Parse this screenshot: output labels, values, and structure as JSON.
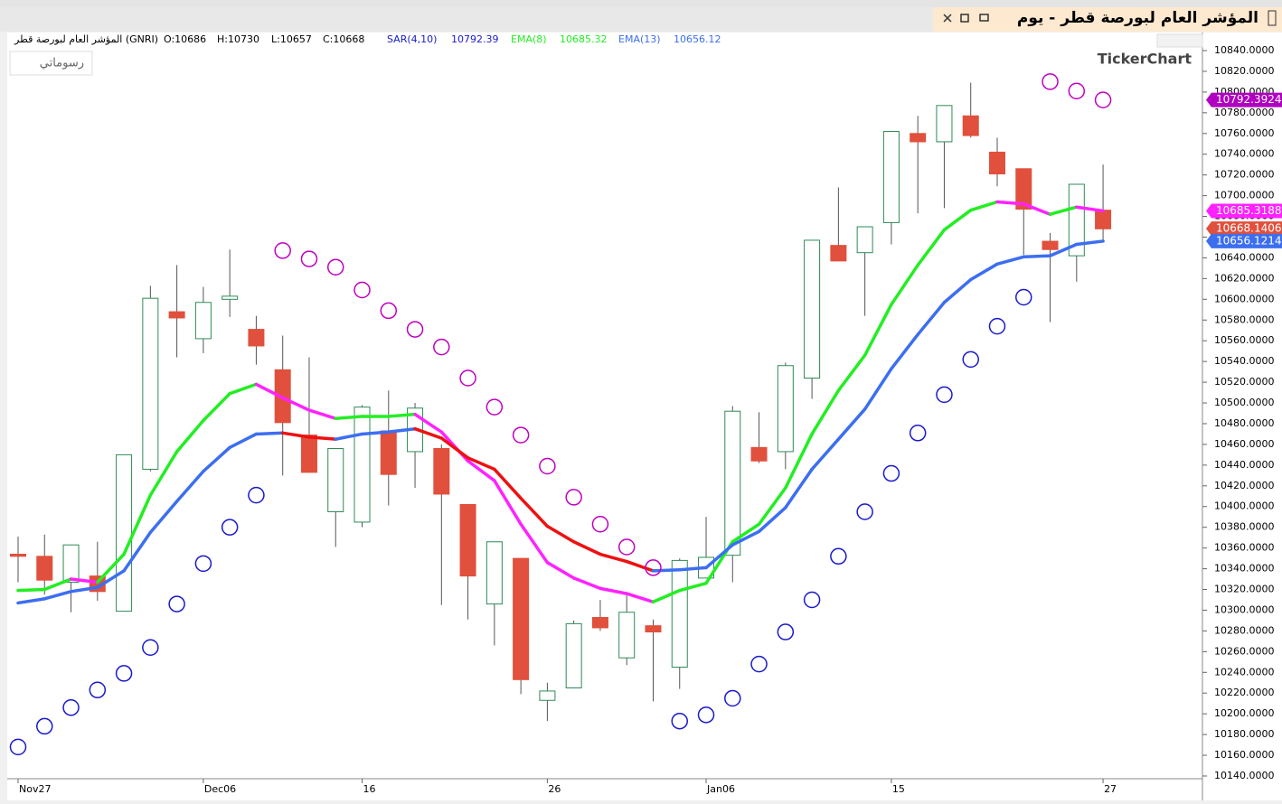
{
  "window": {
    "title": "المؤشر العام لبورصة قطر - يوم",
    "chart_button": "رسوماتي",
    "watermark": "TickerChart"
  },
  "chart_data": {
    "type": "candlestick",
    "instrument": "المؤشر العام لبورصة قطر (GNRI)",
    "ohlc_labels": [
      "O:10686",
      "H:10730",
      "L:10657",
      "C:10668"
    ],
    "categories": [
      "Nov27",
      null,
      null,
      null,
      null,
      null,
      null,
      "Dec06",
      null,
      null,
      null,
      null,
      null,
      "16",
      null,
      null,
      null,
      null,
      null,
      null,
      "26",
      null,
      null,
      null,
      null,
      null,
      "Jan06",
      null,
      null,
      null,
      null,
      null,
      null,
      "15",
      null,
      null,
      null,
      null,
      null,
      null,
      null,
      "27"
    ],
    "open": [
      10354,
      10352,
      10327,
      10333,
      10299,
      10436,
      10588,
      10562,
      10600,
      10571,
      10532,
      10469,
      10395,
      10385,
      10473,
      10453,
      10456,
      10402,
      10306,
      10350,
      10213,
      10225,
      10293,
      10254,
      10285,
      10245,
      10331,
      10353,
      10457,
      10453,
      10524,
      10652,
      10645,
      10674,
      10760,
      10752,
      10777,
      10742,
      10726,
      10656,
      10642,
      10686
    ],
    "high": [
      10371,
      10373,
      10363,
      10366,
      10450,
      10613,
      10633,
      10612,
      10648,
      10584,
      10565,
      10544,
      10456,
      10498,
      10512,
      10500,
      10460,
      10402,
      10366,
      10350,
      10230,
      10290,
      10310,
      10317,
      10291,
      10350,
      10390,
      10497,
      10491,
      10539,
      10657,
      10708,
      10670,
      10762,
      10777,
      10787,
      10809,
      10756,
      10726,
      10664,
      10711,
      10730
    ],
    "low": [
      10327,
      10315,
      10298,
      10309,
      10299,
      10434,
      10544,
      10548,
      10583,
      10537,
      10430,
      10433,
      10361,
      10380,
      10401,
      10418,
      10305,
      10291,
      10266,
      10219,
      10193,
      10225,
      10280,
      10247,
      10212,
      10224,
      10331,
      10327,
      10442,
      10436,
      10504,
      10637,
      10584,
      10653,
      10683,
      10688,
      10756,
      10709,
      10643,
      10578,
      10617,
      10657
    ],
    "close": [
      10352,
      10329,
      10363,
      10318,
      10450,
      10601,
      10582,
      10597,
      10603,
      10555,
      10481,
      10433,
      10456,
      10496,
      10431,
      10495,
      10412,
      10333,
      10366,
      10233,
      10222,
      10287,
      10283,
      10298,
      10279,
      10348,
      10351,
      10492,
      10444,
      10536,
      10657,
      10637,
      10670,
      10762,
      10752,
      10787,
      10758,
      10721,
      10687,
      10648,
      10711,
      10668
    ],
    "up_color": "#2e8b57",
    "down_color": "#e0503c",
    "sar": {
      "name": "SAR(4,10)",
      "last_label": "10792.39",
      "color": "#1a1acc",
      "above_color": "#c000c0",
      "values": [
        10168,
        10188,
        10206,
        10223,
        10239,
        10264,
        10306,
        10345,
        10380,
        10411,
        10647,
        10639,
        10631,
        10609,
        10589,
        10571,
        10554,
        10524,
        10496,
        10469,
        10439,
        10409,
        10383,
        10361,
        10341,
        10193,
        10199,
        10215,
        10248,
        10279,
        10310,
        10352,
        10395,
        10432,
        10471,
        10508,
        10542,
        10574,
        10602,
        10810,
        10801,
        10792.39
      ]
    },
    "series": [
      {
        "name": "EMA(8)",
        "last_label": "10685.32",
        "color": "#22ee22",
        "down_color": "#ff22ff",
        "values": [
          10319,
          10320,
          10330,
          10327,
          10354,
          10411,
          10453,
          10483,
          10509,
          10518,
          10505,
          10493,
          10485,
          10487,
          10487,
          10489,
          10472,
          10444,
          10425,
          10383,
          10346,
          10331,
          10321,
          10316,
          10308,
          10319,
          10326,
          10366,
          10383,
          10418,
          10470,
          10512,
          10546,
          10595,
          10633,
          10667,
          10686,
          10694,
          10692,
          10682,
          10689,
          10685.32
        ]
      },
      {
        "name": "EMA(13)",
        "last_label": "10656.12",
        "color": "#3c6ef0",
        "down_color": "#ee1111",
        "values": [
          10307,
          10311,
          10318,
          10322,
          10338,
          10375,
          10405,
          10434,
          10457,
          10470,
          10471,
          10467,
          10465,
          10470,
          10472,
          10475,
          10466,
          10447,
          10436,
          10408,
          10381,
          10366,
          10354,
          10347,
          10338,
          10339,
          10341,
          10363,
          10376,
          10399,
          10436,
          10465,
          10494,
          10533,
          10566,
          10597,
          10619,
          10634,
          10641,
          10642,
          10653,
          10656.12
        ]
      }
    ],
    "price_tags": [
      {
        "value": 10792.3924,
        "label": "10792.3924",
        "color": "#b000c0"
      },
      {
        "value": 10685.3188,
        "label": "10685.3188",
        "color": "#ff22ff"
      },
      {
        "value": 10668.1406,
        "label": "10668.1406",
        "color": "#e0503c"
      },
      {
        "value": 10656.1214,
        "label": "10656.1214",
        "color": "#3c6ef0"
      }
    ],
    "ylim": [
      10140,
      10840
    ],
    "yticks": [
      {
        "value": 10140,
        "label": "10140.0000"
      },
      {
        "value": 10160,
        "label": "10160.0000"
      },
      {
        "value": 10180,
        "label": "10180.0000"
      },
      {
        "value": 10200,
        "label": "10200.0000"
      },
      {
        "value": 10220,
        "label": "10220.0000"
      },
      {
        "value": 10240,
        "label": "10240.0000"
      },
      {
        "value": 10260,
        "label": "10260.0000"
      },
      {
        "value": 10280,
        "label": "10280.0000"
      },
      {
        "value": 10300,
        "label": "10300.0000"
      },
      {
        "value": 10320,
        "label": "10320.0000"
      },
      {
        "value": 10340,
        "label": "10340.0000"
      },
      {
        "value": 10360,
        "label": "10360.0000"
      },
      {
        "value": 10380,
        "label": "10380.0000"
      },
      {
        "value": 10400,
        "label": "10400.0000"
      },
      {
        "value": 10420,
        "label": "10420.0000"
      },
      {
        "value": 10440,
        "label": "10440.0000"
      },
      {
        "value": 10460,
        "label": "10460.0000"
      },
      {
        "value": 10480,
        "label": "10480.0000"
      },
      {
        "value": 10500,
        "label": "10500.0000"
      },
      {
        "value": 10520,
        "label": "10520.0000"
      },
      {
        "value": 10540,
        "label": "10540.0000"
      },
      {
        "value": 10560,
        "label": "10560.0000"
      },
      {
        "value": 10580,
        "label": "10580.0000"
      },
      {
        "value": 10600,
        "label": "10600.0000"
      },
      {
        "value": 10620,
        "label": "10620.0000"
      },
      {
        "value": 10640,
        "label": "10640.0000"
      },
      {
        "value": 10660,
        "label": "10660.0000"
      },
      {
        "value": 10680,
        "label": "10680.0000"
      },
      {
        "value": 10700,
        "label": "10700.0000"
      },
      {
        "value": 10720,
        "label": "10720.0000"
      },
      {
        "value": 10740,
        "label": "10740.0000"
      },
      {
        "value": 10760,
        "label": "10760.0000"
      },
      {
        "value": 10780,
        "label": "10780.0000"
      },
      {
        "value": 10800,
        "label": "10800.0000"
      },
      {
        "value": 10820,
        "label": "10820.0000"
      },
      {
        "value": 10840,
        "label": "10840.0000"
      }
    ]
  }
}
